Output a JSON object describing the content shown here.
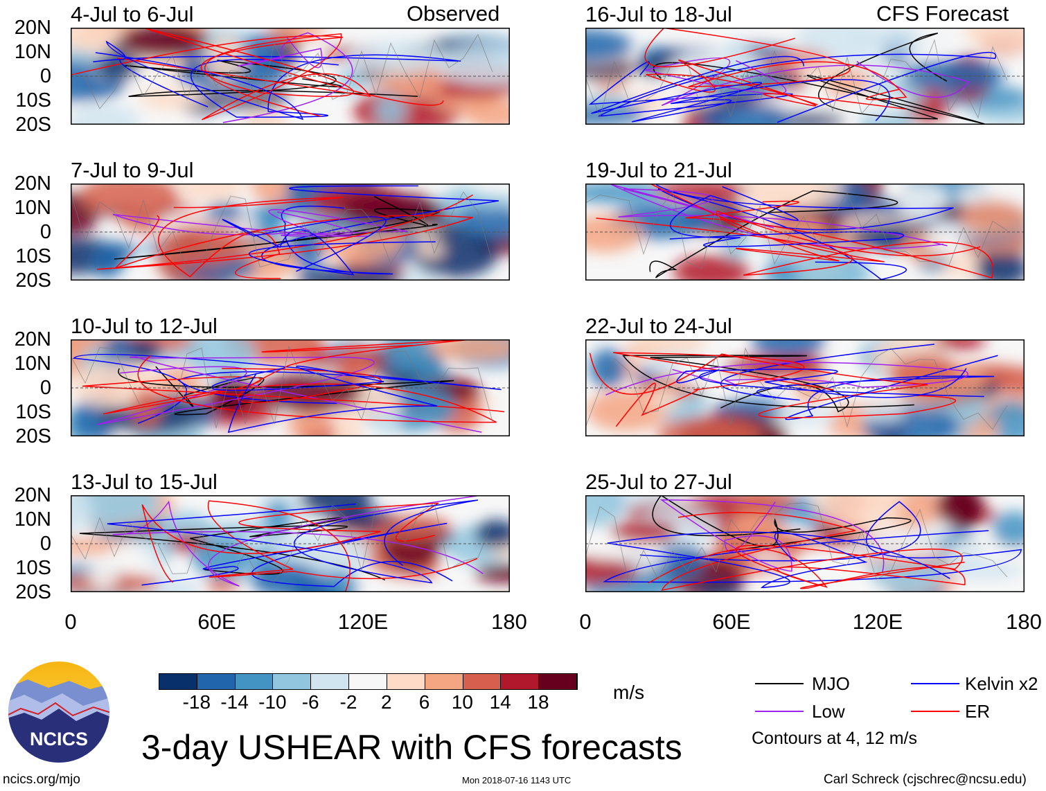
{
  "header": {
    "observed_label": "Observed",
    "forecast_label": "CFS Forecast"
  },
  "panels": {
    "observed": [
      "4-Jul to 6-Jul",
      "7-Jul to 9-Jul",
      "10-Jul to 12-Jul",
      "13-Jul to 15-Jul"
    ],
    "forecast": [
      "16-Jul to 18-Jul",
      "19-Jul to 21-Jul",
      "22-Jul to 24-Jul",
      "25-Jul to 27-Jul"
    ]
  },
  "lat_labels": [
    "20N",
    "10N",
    "0",
    "10S",
    "20S"
  ],
  "lon_labels": [
    "0",
    "60E",
    "120E",
    "180"
  ],
  "colorbar": {
    "colors": [
      "#08306b",
      "#2166ac",
      "#4393c3",
      "#92c5de",
      "#d1e5f0",
      "#f7f7f7",
      "#fddbc7",
      "#f4a582",
      "#d6604d",
      "#b2182b",
      "#67001f"
    ],
    "labels": [
      "-18",
      "-14",
      "-10",
      "-6",
      "-2",
      "2",
      "6",
      "10",
      "14",
      "18"
    ],
    "units": "m/s"
  },
  "legend": {
    "items": [
      {
        "label": "MJO",
        "color": "#000000"
      },
      {
        "label": "Kelvin x2",
        "color": "#0000ff"
      },
      {
        "label": "Low",
        "color": "#a020f0"
      },
      {
        "label": "ER",
        "color": "#ff0000"
      }
    ],
    "note": "Contours at 4, 12 m/s"
  },
  "title": "3-day USHEAR with CFS forecasts",
  "logo_text": "NCICS",
  "footer": {
    "left": "ncics.org/mjo",
    "center": "Mon 2018-07-16 1143 UTC",
    "right": "Carl Schreck (cjschrec@ncsu.edu)"
  }
}
